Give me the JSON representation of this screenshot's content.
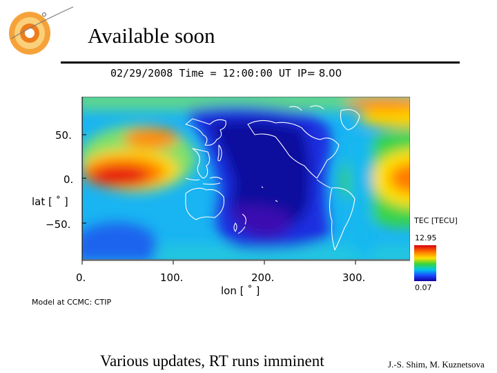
{
  "slide": {
    "title": "Available soon",
    "footer": "Various updates, RT runs imminent",
    "credit": "J.-S. Shim, M. Kuznetsova"
  },
  "logo": {
    "icon": "sun-logo-icon"
  },
  "plot": {
    "header_time": "02/29/2008 Time = 12:00:00 UT",
    "header_ip": "IP= 8.00",
    "model_credit": "Model at CCMC: CTIP"
  },
  "chart_data": {
    "type": "heatmap",
    "title": "02/29/2008 Time = 12:00:00 UT IP= 8.00",
    "xlabel": "lon [ ˚ ]",
    "ylabel": "lat [ ˚ ]",
    "x_ticks": [
      "0.",
      "100.",
      "200.",
      "300."
    ],
    "y_ticks": [
      "50.",
      "0.",
      "−50."
    ],
    "xlim": [
      0,
      360
    ],
    "ylim": [
      -90,
      90
    ],
    "colorbar": {
      "title": "TEC [TECU]",
      "max": "12.95",
      "min": "0.07"
    },
    "colors": {
      "high": "#d9000f",
      "mid": "#3ad43a",
      "low": "#1000a0"
    }
  }
}
